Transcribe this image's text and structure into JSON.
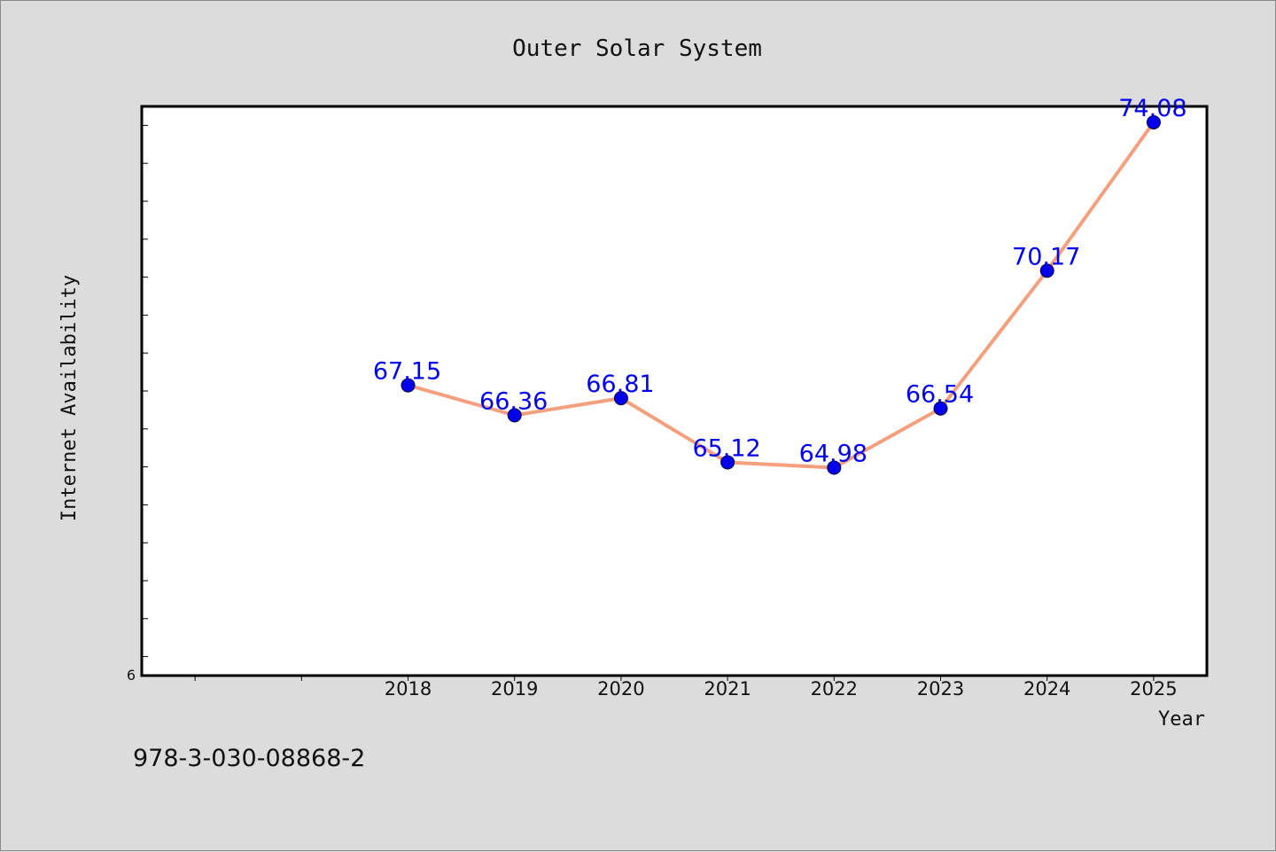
{
  "chart_data": {
    "type": "line",
    "title": "Outer Solar System",
    "xlabel": "Year",
    "ylabel": "Internet Availability",
    "categories": [
      "2018",
      "2019",
      "2020",
      "2021",
      "2022",
      "2023",
      "2024",
      "2025"
    ],
    "series": [
      {
        "values": [
          67.15,
          66.36,
          66.81,
          65.12,
          64.98,
          66.54,
          70.17,
          74.08
        ],
        "labels": [
          "67.15",
          "66.36",
          "66.81",
          "65.12",
          "64.98",
          "66.54",
          "70.17",
          "74.08"
        ]
      }
    ],
    "x_range": [
      2015.5,
      2025.5
    ],
    "ylim": [
      59.5,
      74.5
    ],
    "y_tick_label": "6",
    "grid": false,
    "legend": "none",
    "colors": {
      "line": "#f4a07e",
      "marker": "#0000ee",
      "data_label": "#0000ee",
      "plot_background": "#ffffff",
      "page_background": "#dcdcdc"
    }
  },
  "footer": {
    "isbn": "978-3-030-08868-2"
  }
}
